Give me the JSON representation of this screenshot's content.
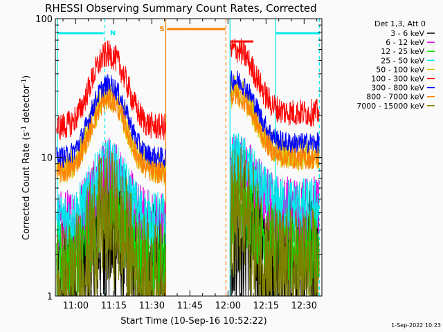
{
  "chart_data": {
    "type": "line",
    "title": "RHESSI Observing Summary Count Rates, Corrected",
    "xlabel": "Start Time (10-Sep-16 10:52:22)",
    "ylabel_main": "Corrected Count Rate (s",
    "ylabel_sup1": "-1",
    "ylabel_mid": " detector",
    "ylabel_sup2": "-1",
    "ylabel_end": ")",
    "y_scale": "log",
    "ylim": [
      1,
      100
    ],
    "xlim_minutes_after_1052": [
      0,
      105
    ],
    "x_ticks": [
      {
        "label": "11:00",
        "minutes": 8
      },
      {
        "label": "11:15",
        "minutes": 23
      },
      {
        "label": "11:30",
        "minutes": 38
      },
      {
        "label": "11:45",
        "minutes": 53
      },
      {
        "label": "12:00",
        "minutes": 68
      },
      {
        "label": "12:15",
        "minutes": 83
      },
      {
        "label": "12:30",
        "minutes": 98
      }
    ],
    "y_ticks": [
      {
        "label": "1",
        "value": 1
      },
      {
        "label": "10",
        "value": 10
      },
      {
        "label": "100",
        "value": 100
      }
    ],
    "legend_header": "Det 1,3, Att 0",
    "series": [
      {
        "name": "3 - 6 keV",
        "color": "#000000",
        "level": 2.2,
        "noise": 0.6
      },
      {
        "name": "6 - 12 keV",
        "color": "#e000e0",
        "level": 6.0,
        "noise": 0.25
      },
      {
        "name": "12 - 25 keV",
        "color": "#00e000",
        "level": 3.2,
        "noise": 0.3
      },
      {
        "name": "25 - 50 keV",
        "color": "#00e8e8",
        "level": 6.5,
        "noise": 0.2
      },
      {
        "name": "50 - 100 keV",
        "color": "#d8c800",
        "level": 15.0,
        "noise": 0.12
      },
      {
        "name": "100 - 300 keV",
        "color": "#ff0000",
        "level": 30.0,
        "noise": 0.1
      },
      {
        "name": "300 - 800 keV",
        "color": "#0000ff",
        "level": 18.0,
        "noise": 0.08
      },
      {
        "name": "800 - 7000 keV",
        "color": "#ff8000",
        "level": 14.0,
        "noise": 0.08
      },
      {
        "name": "7000 - 15000 keV",
        "color": "#808000",
        "level": 2.0,
        "noise": 0.5
      }
    ],
    "saa_label": "S",
    "night_label": "N",
    "timestamp": "1-Sep-2022 10:23"
  }
}
